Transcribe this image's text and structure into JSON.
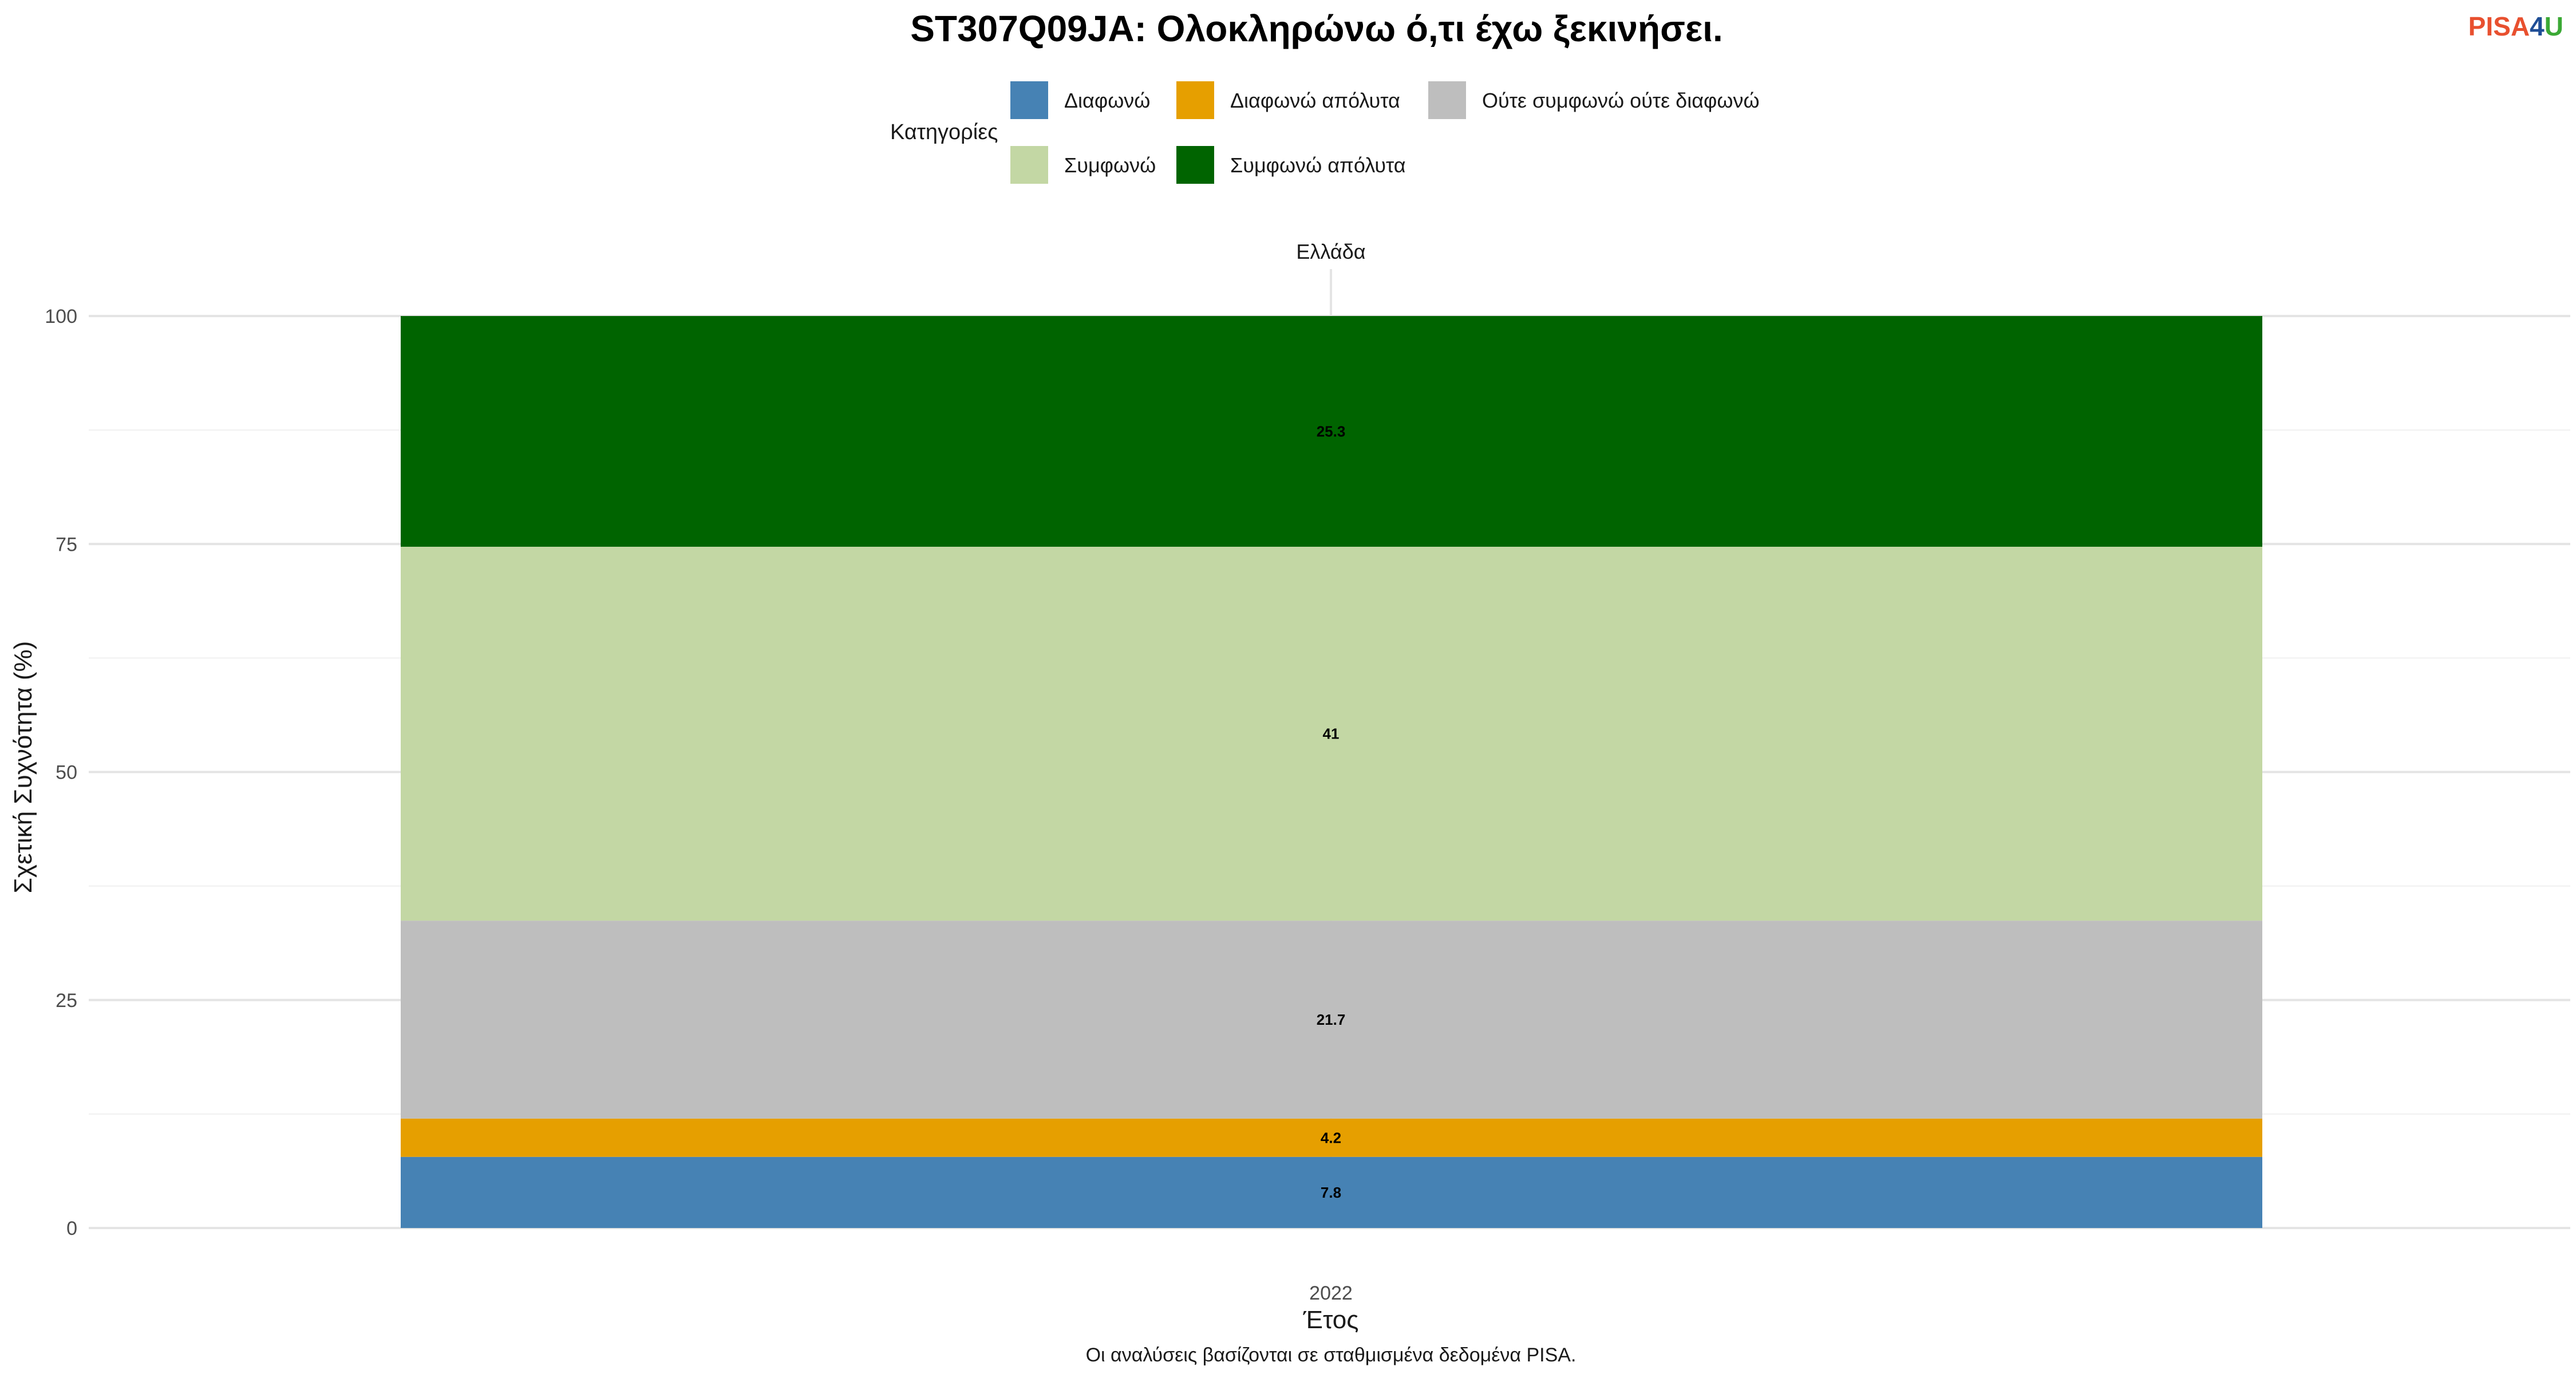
{
  "chart_data": {
    "type": "bar",
    "stacked": true,
    "title": "ST307Q09JA: Ολοκληρώνω ό,τι έχω ξεκινήσει.",
    "facet": "Ελλάδα",
    "categories": [
      "2022"
    ],
    "xlabel": "Έτος",
    "ylabel": "Σχετική Συχνότητα (%)",
    "ylim": [
      0,
      100
    ],
    "yticks": [
      0,
      25,
      50,
      75,
      100
    ],
    "grid": true,
    "legend": {
      "title": "Κατηγορίες",
      "position": "top",
      "entries": [
        "Διαφωνώ",
        "Διαφωνώ απόλυτα",
        "Ούτε συμφωνώ ούτε διαφωνώ",
        "Συμφωνώ",
        "Συμφωνώ απόλυτα"
      ]
    },
    "series": [
      {
        "name": "Διαφωνώ",
        "values": [
          7.8
        ],
        "label": "7.8",
        "color": "#4682B4"
      },
      {
        "name": "Διαφωνώ απόλυτα",
        "values": [
          4.2
        ],
        "label": "4.2",
        "color": "#E69F00"
      },
      {
        "name": "Ούτε συμφωνώ ούτε διαφωνώ",
        "values": [
          21.7
        ],
        "label": "21.7",
        "color": "#BEBEBE"
      },
      {
        "name": "Συμφωνώ",
        "values": [
          41
        ],
        "label": "41",
        "color": "#C3D7A4"
      },
      {
        "name": "Συμφωνώ απόλυτα",
        "values": [
          25.3
        ],
        "label": "25.3",
        "color": "#006400"
      }
    ],
    "caption": "Οι αναλύσεις βασίζονται σε σταθμισμένα δεδομένα PISA."
  },
  "logo": {
    "part1": "PISA",
    "part2": "4",
    "part3": "U",
    "color1": "#E8502F",
    "color2": "#1F4E96",
    "color3": "#3BA935"
  }
}
